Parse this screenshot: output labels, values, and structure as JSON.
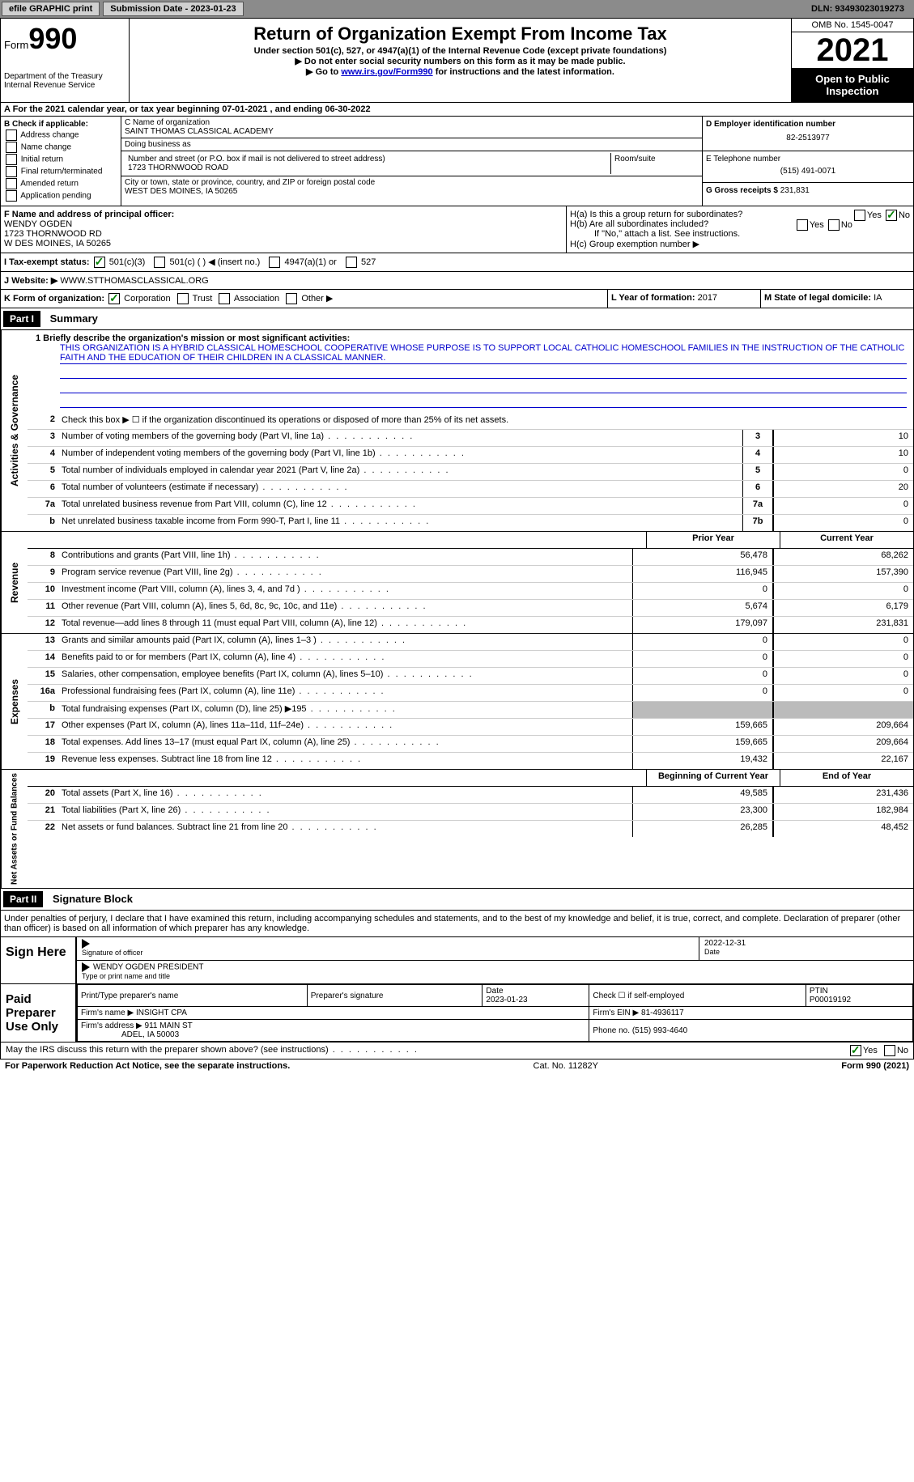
{
  "top_bar": {
    "efile": "efile GRAPHIC print",
    "sub_date_label": "Submission Date - 2023-01-23",
    "dln": "DLN: 93493023019273"
  },
  "header": {
    "form_label": "Form",
    "form_num": "990",
    "dept": "Department of the Treasury\nInternal Revenue Service",
    "title": "Return of Organization Exempt From Income Tax",
    "subtitle": "Under section 501(c), 527, or 4947(a)(1) of the Internal Revenue Code (except private foundations)",
    "note1": "▶ Do not enter social security numbers on this form as it may be made public.",
    "note2_pre": "▶ Go to ",
    "note2_link": "www.irs.gov/Form990",
    "note2_post": " for instructions and the latest information.",
    "omb": "OMB No. 1545-0047",
    "year": "2021",
    "inspect": "Open to Public Inspection"
  },
  "row_a": "A For the 2021 calendar year, or tax year beginning 07-01-2021    , and ending 06-30-2022",
  "col_b": {
    "label": "B Check if applicable:",
    "opts": [
      "Address change",
      "Name change",
      "Initial return",
      "Final return/terminated",
      "Amended return",
      "Application pending"
    ]
  },
  "col_c": {
    "name_label": "C Name of organization",
    "name": "SAINT THOMAS CLASSICAL ACADEMY",
    "dba_label": "Doing business as",
    "dba": "",
    "addr_label": "Number and street (or P.O. box if mail is not delivered to street address)",
    "room_label": "Room/suite",
    "addr": "1723 THORNWOOD ROAD",
    "city_label": "City or town, state or province, country, and ZIP or foreign postal code",
    "city": "WEST DES MOINES, IA   50265"
  },
  "col_d": {
    "ein_label": "D Employer identification number",
    "ein": "82-2513977",
    "tel_label": "E Telephone number",
    "tel": "(515) 491-0071",
    "gross_label": "G Gross receipts $",
    "gross": "231,831"
  },
  "officer": {
    "label": "F Name and address of principal officer:",
    "name": "WENDY OGDEN",
    "addr1": "1723 THORNWOOD RD",
    "addr2": "W DES MOINES, IA   50265",
    "ha": "H(a)  Is this a group return for subordinates?",
    "hb": "H(b)  Are all subordinates included?",
    "hb_note": "If \"No,\" attach a list. See instructions.",
    "hc": "H(c)  Group exemption number ▶"
  },
  "tax_status": {
    "label": "I   Tax-exempt status:",
    "opts": [
      "501(c)(3)",
      "501(c) (  ) ◀ (insert no.)",
      "4947(a)(1) or",
      "527"
    ]
  },
  "website": {
    "label": "J   Website: ▶",
    "url": "WWW.STTHOMASCLASSICAL.ORG"
  },
  "row_k": {
    "label": "K Form of organization:",
    "opts": [
      "Corporation",
      "Trust",
      "Association",
      "Other ▶"
    ],
    "l_label": "L Year of formation:",
    "l_val": "2017",
    "m_label": "M State of legal domicile:",
    "m_val": "IA"
  },
  "part1": {
    "header": "Part I",
    "title": "Summary"
  },
  "mission": {
    "label": "1   Briefly describe the organization's mission or most significant activities:",
    "text": "THIS ORGANIZATION IS A HYBRID CLASSICAL HOMESCHOOL COOPERATIVE WHOSE PURPOSE IS TO SUPPORT LOCAL CATHOLIC HOMESCHOOL FAMILIES IN THE INSTRUCTION OF THE CATHOLIC FAITH AND THE EDUCATION OF THEIR CHILDREN IN A CLASSICAL MANNER."
  },
  "line2": "Check this box ▶ ☐ if the organization discontinued its operations or disposed of more than 25% of its net assets.",
  "sections": {
    "governance": "Activities & Governance",
    "revenue": "Revenue",
    "expenses": "Expenses",
    "netassets": "Net Assets or Fund Balances"
  },
  "lines_gov": [
    {
      "num": "3",
      "text": "Number of voting members of the governing body (Part VI, line 1a)",
      "box": "3",
      "val": "10"
    },
    {
      "num": "4",
      "text": "Number of independent voting members of the governing body (Part VI, line 1b)",
      "box": "4",
      "val": "10"
    },
    {
      "num": "5",
      "text": "Total number of individuals employed in calendar year 2021 (Part V, line 2a)",
      "box": "5",
      "val": "0"
    },
    {
      "num": "6",
      "text": "Total number of volunteers (estimate if necessary)",
      "box": "6",
      "val": "20"
    },
    {
      "num": "7a",
      "text": "Total unrelated business revenue from Part VIII, column (C), line 12",
      "box": "7a",
      "val": "0"
    },
    {
      "num": "b",
      "text": "Net unrelated business taxable income from Form 990-T, Part I, line 11",
      "box": "7b",
      "val": "0"
    }
  ],
  "col_headers": {
    "prior": "Prior Year",
    "current": "Current Year"
  },
  "lines_rev": [
    {
      "num": "8",
      "text": "Contributions and grants (Part VIII, line 1h)",
      "prior": "56,478",
      "curr": "68,262"
    },
    {
      "num": "9",
      "text": "Program service revenue (Part VIII, line 2g)",
      "prior": "116,945",
      "curr": "157,390"
    },
    {
      "num": "10",
      "text": "Investment income (Part VIII, column (A), lines 3, 4, and 7d )",
      "prior": "0",
      "curr": "0"
    },
    {
      "num": "11",
      "text": "Other revenue (Part VIII, column (A), lines 5, 6d, 8c, 9c, 10c, and 11e)",
      "prior": "5,674",
      "curr": "6,179"
    },
    {
      "num": "12",
      "text": "Total revenue—add lines 8 through 11 (must equal Part VIII, column (A), line 12)",
      "prior": "179,097",
      "curr": "231,831"
    }
  ],
  "lines_exp": [
    {
      "num": "13",
      "text": "Grants and similar amounts paid (Part IX, column (A), lines 1–3 )",
      "prior": "0",
      "curr": "0"
    },
    {
      "num": "14",
      "text": "Benefits paid to or for members (Part IX, column (A), line 4)",
      "prior": "0",
      "curr": "0"
    },
    {
      "num": "15",
      "text": "Salaries, other compensation, employee benefits (Part IX, column (A), lines 5–10)",
      "prior": "0",
      "curr": "0"
    },
    {
      "num": "16a",
      "text": "Professional fundraising fees (Part IX, column (A), line 11e)",
      "prior": "0",
      "curr": "0"
    },
    {
      "num": "b",
      "text": "Total fundraising expenses (Part IX, column (D), line 25) ▶195",
      "prior": "",
      "curr": "",
      "shaded": true
    },
    {
      "num": "17",
      "text": "Other expenses (Part IX, column (A), lines 11a–11d, 11f–24e)",
      "prior": "159,665",
      "curr": "209,664"
    },
    {
      "num": "18",
      "text": "Total expenses. Add lines 13–17 (must equal Part IX, column (A), line 25)",
      "prior": "159,665",
      "curr": "209,664"
    },
    {
      "num": "19",
      "text": "Revenue less expenses. Subtract line 18 from line 12",
      "prior": "19,432",
      "curr": "22,167"
    }
  ],
  "col_headers2": {
    "begin": "Beginning of Current Year",
    "end": "End of Year"
  },
  "lines_net": [
    {
      "num": "20",
      "text": "Total assets (Part X, line 16)",
      "prior": "49,585",
      "curr": "231,436"
    },
    {
      "num": "21",
      "text": "Total liabilities (Part X, line 26)",
      "prior": "23,300",
      "curr": "182,984"
    },
    {
      "num": "22",
      "text": "Net assets or fund balances. Subtract line 21 from line 20",
      "prior": "26,285",
      "curr": "48,452"
    }
  ],
  "part2": {
    "header": "Part II",
    "title": "Signature Block"
  },
  "sig_decl": "Under penalties of perjury, I declare that I have examined this return, including accompanying schedules and statements, and to the best of my knowledge and belief, it is true, correct, and complete. Declaration of preparer (other than officer) is based on all information of which preparer has any knowledge.",
  "sign": {
    "label": "Sign Here",
    "sig_officer": "Signature of officer",
    "date": "Date",
    "date_val": "2022-12-31",
    "name_title": "WENDY OGDEN  PRESIDENT",
    "type_label": "Type or print name and title"
  },
  "prep": {
    "label": "Paid Preparer Use Only",
    "print_name": "Print/Type preparer's name",
    "prep_sig": "Preparer's signature",
    "date_label": "Date",
    "date_val": "2023-01-23",
    "check_label": "Check ☐ if self-employed",
    "ptin_label": "PTIN",
    "ptin": "P00019192",
    "firm_name_label": "Firm's name    ▶",
    "firm_name": "INSIGHT CPA",
    "firm_ein_label": "Firm's EIN ▶",
    "firm_ein": "81-4936117",
    "firm_addr_label": "Firm's address ▶",
    "firm_addr": "911 MAIN ST",
    "firm_city": "ADEL, IA   50003",
    "phone_label": "Phone no.",
    "phone": "(515) 993-4640"
  },
  "discuss": "May the IRS discuss this return with the preparer shown above? (see instructions)",
  "footer": {
    "left": "For Paperwork Reduction Act Notice, see the separate instructions.",
    "center": "Cat. No. 11282Y",
    "right": "Form 990 (2021)"
  }
}
